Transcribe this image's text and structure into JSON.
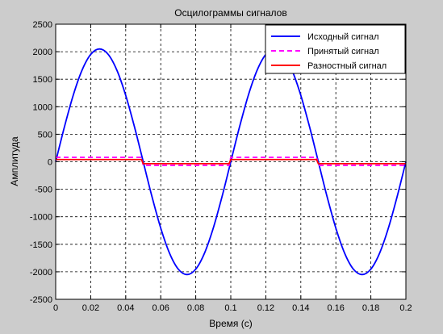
{
  "figure": {
    "background_color": "#cccccc",
    "axes_background_color": "#ffffff"
  },
  "chart_data": {
    "type": "line",
    "title": "Осцилограммы сигналов",
    "xlabel": "Время (с)",
    "ylabel": "Амплитуда",
    "xlim": [
      0,
      0.2
    ],
    "ylim": [
      -2500,
      2500
    ],
    "grid": true,
    "grid_style": "dashed",
    "legend_position": "top-right",
    "x_tick_labels": [
      "0",
      "0.02",
      "0.04",
      "0.06",
      "0.08",
      "0.1",
      "0.12",
      "0.14",
      "0.16",
      "0.18",
      "0.2"
    ],
    "y_tick_labels": [
      "2500",
      "2000",
      "1500",
      "1000",
      "500",
      "0",
      "-500",
      "-1000",
      "-1500",
      "-2000",
      "-2500"
    ],
    "x": [
      0,
      0.005,
      0.01,
      0.015,
      0.02,
      0.025,
      0.03,
      0.035,
      0.04,
      0.045,
      0.049,
      0.05,
      0.051,
      0.055,
      0.06,
      0.065,
      0.07,
      0.075,
      0.08,
      0.085,
      0.09,
      0.095,
      0.099,
      0.1,
      0.101,
      0.105,
      0.11,
      0.115,
      0.12,
      0.125,
      0.13,
      0.135,
      0.14,
      0.145,
      0.149,
      0.15,
      0.151,
      0.155,
      0.16,
      0.165,
      0.17,
      0.175,
      0.18,
      0.185,
      0.19,
      0.195,
      0.2
    ],
    "series": [
      {
        "name": "Исходный сигнал",
        "color": "#0000ff",
        "line_style": "solid",
        "values": [
          0,
          634,
          1206,
          1660,
          1951,
          2050,
          1951,
          1660,
          1206,
          634,
          129,
          0,
          -129,
          -634,
          -1206,
          -1660,
          -1951,
          -2050,
          -1951,
          -1660,
          -1206,
          -634,
          -129,
          0,
          129,
          634,
          1206,
          1660,
          1951,
          2050,
          1951,
          1660,
          1206,
          634,
          129,
          0,
          -129,
          -634,
          -1206,
          -1660,
          -1951,
          -2050,
          -1951,
          -1660,
          -1206,
          -634,
          0
        ]
      },
      {
        "name": "Принятый сигнал",
        "color": "#ff00ff",
        "line_style": "dashed",
        "values": [
          80,
          80,
          80,
          80,
          80,
          80,
          80,
          80,
          80,
          80,
          80,
          -65,
          -65,
          -65,
          -65,
          -65,
          -65,
          -65,
          -65,
          -65,
          -65,
          -65,
          -65,
          80,
          80,
          80,
          80,
          80,
          80,
          80,
          80,
          80,
          80,
          80,
          80,
          -65,
          -65,
          -65,
          -65,
          -65,
          -65,
          -65,
          -65,
          -65,
          -65,
          -65,
          -65
        ]
      },
      {
        "name": "Разностный сигнал",
        "color": "#ff0000",
        "line_style": "solid",
        "values": [
          40,
          40,
          40,
          40,
          40,
          40,
          40,
          40,
          40,
          40,
          40,
          -35,
          -35,
          -35,
          -35,
          -35,
          -35,
          -35,
          -35,
          -35,
          -35,
          -35,
          -35,
          40,
          40,
          40,
          40,
          40,
          40,
          40,
          40,
          40,
          40,
          40,
          40,
          -35,
          -35,
          -35,
          -35,
          -35,
          -35,
          -35,
          -35,
          -35,
          -35,
          -35,
          -35
        ]
      }
    ]
  }
}
